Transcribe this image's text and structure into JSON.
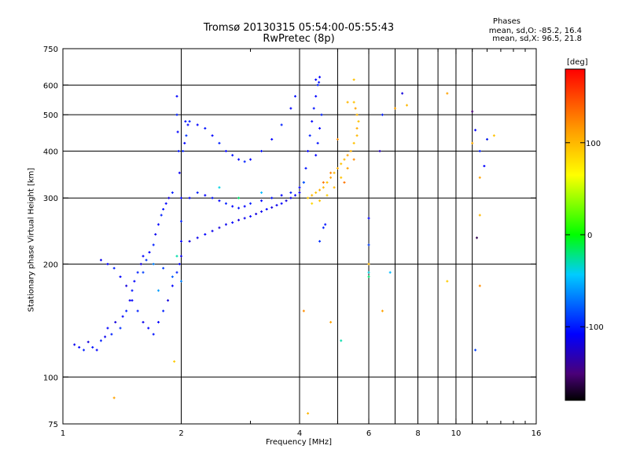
{
  "chart_data": {
    "type": "scatter",
    "title": "Tromsø 20130315 05:54:00-05:55:43",
    "subtitle": "RwPretec (8p)",
    "xlabel": "Frequency [MHz]",
    "ylabel": "Stationary phase Virtual Height [km]",
    "x_scale": "log",
    "y_scale": "log",
    "xlim": [
      1,
      16
    ],
    "ylim": [
      75,
      750
    ],
    "xticks": [
      1,
      2,
      4,
      6,
      8,
      10,
      16
    ],
    "x_minor_ticks": [
      3,
      5,
      7,
      9,
      11,
      12,
      13,
      14,
      15
    ],
    "yticks": [
      75,
      100,
      200,
      300,
      400,
      500,
      600,
      750
    ],
    "grid": true,
    "colorbar": {
      "label": "[deg]",
      "ticks": [
        100,
        0,
        -100
      ],
      "range": [
        -180,
        180
      ],
      "colormap": "rainbow"
    },
    "phase_info": {
      "heading": "Phases",
      "line_o": "mean, sd,O: -85.2, 16.4",
      "line_x": "mean, sd,X:  96.5, 21.8"
    },
    "series": [
      {
        "marker": "o-mode",
        "points": [
          [
            1.07,
            122,
            -115
          ],
          [
            1.1,
            120,
            -110
          ],
          [
            1.13,
            118,
            -100
          ],
          [
            1.16,
            124,
            -120
          ],
          [
            1.19,
            120,
            -105
          ],
          [
            1.22,
            118,
            -110
          ],
          [
            1.25,
            125,
            -100
          ],
          [
            1.28,
            128,
            -115
          ],
          [
            1.3,
            135,
            -110
          ],
          [
            1.33,
            130,
            -100
          ],
          [
            1.36,
            140,
            -120
          ],
          [
            1.4,
            135,
            -95
          ],
          [
            1.42,
            145,
            -110
          ],
          [
            1.45,
            150,
            -100
          ],
          [
            1.48,
            160,
            -115
          ],
          [
            1.5,
            170,
            -105
          ],
          [
            1.52,
            180,
            -110
          ],
          [
            1.55,
            190,
            -100
          ],
          [
            1.58,
            200,
            -120
          ],
          [
            1.6,
            210,
            -110
          ],
          [
            1.63,
            205,
            -95
          ],
          [
            1.66,
            215,
            -110
          ],
          [
            1.7,
            225,
            -100
          ],
          [
            1.72,
            240,
            -115
          ],
          [
            1.75,
            255,
            -110
          ],
          [
            1.78,
            270,
            -100
          ],
          [
            1.8,
            280,
            -105
          ],
          [
            1.83,
            290,
            -110
          ],
          [
            1.86,
            300,
            -120
          ],
          [
            1.9,
            310,
            -100
          ],
          [
            1.25,
            205,
            -115
          ],
          [
            1.3,
            200,
            -110
          ],
          [
            1.35,
            195,
            -100
          ],
          [
            1.4,
            185,
            -110
          ],
          [
            1.45,
            175,
            -120
          ],
          [
            1.5,
            160,
            -110
          ],
          [
            1.55,
            150,
            -100
          ],
          [
            1.6,
            140,
            -115
          ],
          [
            1.65,
            135,
            -110
          ],
          [
            1.7,
            130,
            -105
          ],
          [
            1.75,
            140,
            -110
          ],
          [
            1.8,
            150,
            -100
          ],
          [
            1.85,
            160,
            -120
          ],
          [
            1.9,
            175,
            -110
          ],
          [
            1.95,
            190,
            -100
          ],
          [
            1.98,
            200,
            -110
          ],
          [
            2.0,
            210,
            -115
          ],
          [
            2.0,
            230,
            -110
          ],
          [
            2.0,
            260,
            -100
          ],
          [
            2.0,
            300,
            -110
          ],
          [
            1.98,
            350,
            -115
          ],
          [
            1.97,
            400,
            -105
          ],
          [
            1.96,
            450,
            -110
          ],
          [
            1.95,
            500,
            -100
          ],
          [
            1.95,
            560,
            -110
          ],
          [
            2.02,
            400,
            -100
          ],
          [
            2.04,
            420,
            -110
          ],
          [
            2.06,
            440,
            -95
          ],
          [
            2.05,
            480,
            -105
          ],
          [
            2.08,
            470,
            -110
          ],
          [
            2.1,
            230,
            -120
          ],
          [
            2.2,
            235,
            -115
          ],
          [
            2.3,
            240,
            -110
          ],
          [
            2.4,
            245,
            -115
          ],
          [
            2.5,
            250,
            -120
          ],
          [
            2.6,
            255,
            -115
          ],
          [
            2.7,
            258,
            -110
          ],
          [
            2.8,
            262,
            -120
          ],
          [
            2.9,
            265,
            -115
          ],
          [
            3.0,
            268,
            -110
          ],
          [
            3.1,
            272,
            -120
          ],
          [
            3.2,
            276,
            -115
          ],
          [
            3.3,
            280,
            -110
          ],
          [
            3.4,
            283,
            -120
          ],
          [
            3.5,
            287,
            -115
          ],
          [
            3.6,
            290,
            -110
          ],
          [
            3.7,
            295,
            -120
          ],
          [
            3.8,
            300,
            -115
          ],
          [
            3.9,
            305,
            -110
          ],
          [
            4.0,
            310,
            -115
          ],
          [
            2.1,
            300,
            -110
          ],
          [
            2.2,
            310,
            -100
          ],
          [
            2.3,
            305,
            -110
          ],
          [
            2.4,
            300,
            -105
          ],
          [
            2.5,
            295,
            -110
          ],
          [
            2.6,
            290,
            -100
          ],
          [
            2.7,
            285,
            -110
          ],
          [
            2.8,
            282,
            -105
          ],
          [
            2.9,
            285,
            -110
          ],
          [
            3.0,
            290,
            -100
          ],
          [
            3.2,
            295,
            -110
          ],
          [
            3.4,
            300,
            -105
          ],
          [
            3.6,
            305,
            -110
          ],
          [
            3.8,
            310,
            -100
          ],
          [
            4.0,
            320,
            -110
          ],
          [
            2.1,
            480,
            -100
          ],
          [
            2.2,
            470,
            -110
          ],
          [
            2.3,
            460,
            -105
          ],
          [
            2.4,
            440,
            -110
          ],
          [
            2.5,
            420,
            -100
          ],
          [
            2.6,
            400,
            -110
          ],
          [
            2.7,
            390,
            -105
          ],
          [
            2.8,
            380,
            -110
          ],
          [
            2.9,
            375,
            -100
          ],
          [
            3.0,
            380,
            -110
          ],
          [
            3.2,
            400,
            -105
          ],
          [
            3.4,
            430,
            -110
          ],
          [
            3.6,
            470,
            -100
          ],
          [
            3.8,
            520,
            -110
          ],
          [
            3.9,
            560,
            -105
          ],
          [
            4.1,
            330,
            -110
          ],
          [
            4.15,
            360,
            -105
          ],
          [
            4.2,
            400,
            -110
          ],
          [
            4.25,
            440,
            -100
          ],
          [
            4.3,
            480,
            -110
          ],
          [
            4.35,
            520,
            -105
          ],
          [
            4.4,
            560,
            -110
          ],
          [
            4.45,
            600,
            -100
          ],
          [
            4.5,
            630,
            -110
          ],
          [
            4.48,
            610,
            -105
          ],
          [
            4.4,
            620,
            -110
          ],
          [
            4.55,
            500,
            -100
          ],
          [
            4.5,
            460,
            -110
          ],
          [
            4.45,
            420,
            -105
          ],
          [
            4.4,
            390,
            -110
          ],
          [
            1.6,
            190,
            -90
          ],
          [
            1.7,
            200,
            -70
          ],
          [
            1.8,
            195,
            -90
          ],
          [
            1.9,
            185,
            -80
          ],
          [
            1.75,
            170,
            -60
          ],
          [
            2.5,
            320,
            -40
          ],
          [
            2.8,
            300,
            -20
          ],
          [
            3.2,
            310,
            -50
          ],
          [
            1.95,
            210,
            -30
          ],
          [
            2.0,
            180,
            -70
          ]
        ]
      },
      {
        "marker": "x-mode",
        "points": [
          [
            4.2,
            300,
            90
          ],
          [
            4.3,
            305,
            100
          ],
          [
            4.4,
            310,
            95
          ],
          [
            4.5,
            315,
            105
          ],
          [
            4.6,
            320,
            100
          ],
          [
            4.7,
            330,
            95
          ],
          [
            4.8,
            340,
            110
          ],
          [
            4.9,
            350,
            100
          ],
          [
            5.0,
            360,
            105
          ],
          [
            5.1,
            370,
            95
          ],
          [
            5.2,
            380,
            100
          ],
          [
            5.3,
            390,
            110
          ],
          [
            5.4,
            400,
            105
          ],
          [
            5.5,
            420,
            95
          ],
          [
            5.6,
            440,
            100
          ],
          [
            5.6,
            460,
            105
          ],
          [
            5.65,
            480,
            95
          ],
          [
            5.6,
            500,
            100
          ],
          [
            5.55,
            520,
            110
          ],
          [
            5.5,
            540,
            95
          ],
          [
            4.3,
            290,
            85
          ],
          [
            4.5,
            295,
            95
          ],
          [
            4.7,
            305,
            90
          ],
          [
            4.9,
            320,
            100
          ],
          [
            5.1,
            340,
            95
          ],
          [
            5.3,
            360,
            110
          ],
          [
            5.5,
            380,
            120
          ],
          [
            4.6,
            330,
            130
          ],
          [
            4.8,
            350,
            125
          ],
          [
            5.2,
            330,
            130
          ],
          [
            4.8,
            140,
            110
          ],
          [
            5.0,
            430,
            120
          ],
          [
            4.2,
            80,
            100
          ],
          [
            6.0,
            200,
            100
          ],
          [
            7.0,
            520,
            110
          ],
          [
            7.5,
            530,
            100
          ],
          [
            9.5,
            180,
            90
          ],
          [
            9.5,
            570,
            110
          ],
          [
            11.0,
            420,
            105
          ],
          [
            12.0,
            430,
            100
          ],
          [
            12.5,
            440,
            95
          ],
          [
            11.5,
            340,
            110
          ],
          [
            11.5,
            270,
            100
          ],
          [
            11.5,
            175,
            120
          ],
          [
            6.5,
            150,
            110
          ],
          [
            5.5,
            620,
            95
          ],
          [
            5.3,
            540,
            100
          ],
          [
            4.1,
            150,
            120
          ],
          [
            1.35,
            88,
            110
          ],
          [
            1.92,
            110,
            90
          ]
        ]
      },
      {
        "marker": "other",
        "points": [
          [
            6.0,
            265,
            -110
          ],
          [
            6.0,
            225,
            -90
          ],
          [
            6.0,
            190,
            -40
          ],
          [
            6.0,
            185,
            -20
          ],
          [
            5.1,
            125,
            -30
          ],
          [
            6.4,
            400,
            -130
          ],
          [
            6.5,
            500,
            -100
          ],
          [
            7.3,
            570,
            -120
          ],
          [
            11.0,
            510,
            -150
          ],
          [
            11.2,
            455,
            -110
          ],
          [
            11.5,
            400,
            -100
          ],
          [
            11.3,
            235,
            -160
          ],
          [
            11.2,
            118,
            -90
          ],
          [
            12.0,
            430,
            -100
          ],
          [
            11.8,
            365,
            -110
          ],
          [
            6.8,
            190,
            -50
          ],
          [
            4.6,
            250,
            -100
          ],
          [
            4.5,
            230,
            -95
          ],
          [
            4.65,
            255,
            -105
          ],
          [
            4.1,
            330,
            -80
          ]
        ]
      }
    ]
  }
}
